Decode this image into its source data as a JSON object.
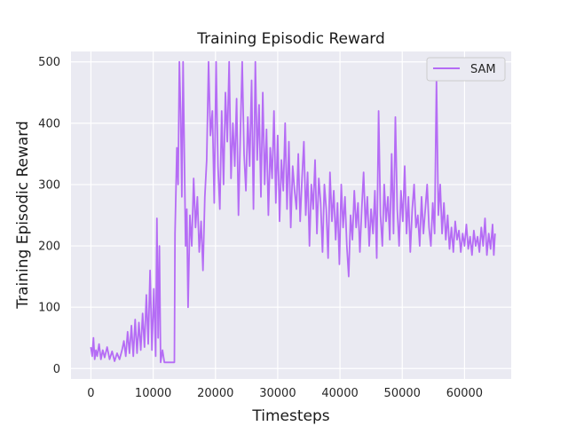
{
  "chart_data": {
    "type": "line",
    "title": "Training Episodic Reward",
    "xlabel": "Timesteps",
    "ylabel": "Training Episodic Reward",
    "xlim": [
      -3200,
      67500
    ],
    "ylim": [
      -17,
      517
    ],
    "x_ticks": [
      0,
      10000,
      20000,
      30000,
      40000,
      50000,
      60000
    ],
    "x_tick_labels": [
      "0",
      "10000",
      "20000",
      "30000",
      "40000",
      "50000",
      "60000"
    ],
    "y_ticks": [
      0,
      100,
      200,
      300,
      400,
      500
    ],
    "y_tick_labels": [
      "0",
      "100",
      "200",
      "300",
      "400",
      "500"
    ],
    "grid": true,
    "legend": {
      "position": "top-right",
      "entries": [
        {
          "name": "SAM",
          "color": "#b56cf5"
        }
      ]
    },
    "series": [
      {
        "name": "SAM",
        "color": "#b56cf5",
        "points": [
          [
            0,
            35
          ],
          [
            200,
            20
          ],
          [
            400,
            50
          ],
          [
            600,
            15
          ],
          [
            800,
            30
          ],
          [
            1000,
            20
          ],
          [
            1300,
            40
          ],
          [
            1600,
            15
          ],
          [
            1900,
            30
          ],
          [
            2200,
            18
          ],
          [
            2600,
            35
          ],
          [
            3000,
            15
          ],
          [
            3400,
            28
          ],
          [
            3800,
            12
          ],
          [
            4200,
            25
          ],
          [
            4600,
            15
          ],
          [
            5000,
            30
          ],
          [
            5300,
            45
          ],
          [
            5600,
            20
          ],
          [
            5900,
            60
          ],
          [
            6200,
            25
          ],
          [
            6500,
            70
          ],
          [
            6800,
            20
          ],
          [
            7100,
            80
          ],
          [
            7400,
            25
          ],
          [
            7700,
            75
          ],
          [
            8000,
            30
          ],
          [
            8300,
            90
          ],
          [
            8600,
            35
          ],
          [
            8900,
            120
          ],
          [
            9200,
            40
          ],
          [
            9500,
            160
          ],
          [
            9800,
            30
          ],
          [
            10100,
            130
          ],
          [
            10400,
            20
          ],
          [
            10600,
            245
          ],
          [
            10800,
            50
          ],
          [
            11000,
            200
          ],
          [
            11200,
            10
          ],
          [
            11500,
            30
          ],
          [
            11800,
            10
          ],
          [
            12200,
            10
          ],
          [
            12600,
            10
          ],
          [
            13000,
            10
          ],
          [
            13400,
            10
          ],
          [
            13500,
            220
          ],
          [
            13800,
            360
          ],
          [
            14000,
            300
          ],
          [
            14200,
            500
          ],
          [
            14400,
            420
          ],
          [
            14600,
            280
          ],
          [
            14800,
            500
          ],
          [
            15000,
            350
          ],
          [
            15200,
            200
          ],
          [
            15400,
            260
          ],
          [
            15600,
            100
          ],
          [
            15900,
            250
          ],
          [
            16200,
            200
          ],
          [
            16500,
            310
          ],
          [
            16800,
            230
          ],
          [
            17100,
            280
          ],
          [
            17400,
            190
          ],
          [
            17700,
            240
          ],
          [
            18000,
            160
          ],
          [
            18300,
            280
          ],
          [
            18600,
            340
          ],
          [
            18900,
            500
          ],
          [
            19200,
            380
          ],
          [
            19500,
            420
          ],
          [
            19800,
            270
          ],
          [
            20100,
            500
          ],
          [
            20400,
            330
          ],
          [
            20700,
            260
          ],
          [
            21000,
            420
          ],
          [
            21300,
            300
          ],
          [
            21600,
            450
          ],
          [
            21900,
            370
          ],
          [
            22200,
            500
          ],
          [
            22500,
            310
          ],
          [
            22800,
            400
          ],
          [
            23100,
            330
          ],
          [
            23400,
            440
          ],
          [
            23700,
            250
          ],
          [
            24000,
            380
          ],
          [
            24300,
            500
          ],
          [
            24600,
            350
          ],
          [
            24900,
            290
          ],
          [
            25200,
            410
          ],
          [
            25500,
            330
          ],
          [
            25800,
            470
          ],
          [
            26100,
            260
          ],
          [
            26400,
            500
          ],
          [
            26700,
            340
          ],
          [
            27000,
            430
          ],
          [
            27300,
            280
          ],
          [
            27600,
            450
          ],
          [
            27900,
            300
          ],
          [
            28200,
            390
          ],
          [
            28500,
            250
          ],
          [
            28800,
            360
          ],
          [
            29100,
            310
          ],
          [
            29400,
            420
          ],
          [
            29700,
            270
          ],
          [
            30000,
            380
          ],
          [
            30300,
            240
          ],
          [
            30600,
            340
          ],
          [
            30900,
            290
          ],
          [
            31200,
            400
          ],
          [
            31500,
            260
          ],
          [
            31800,
            370
          ],
          [
            32100,
            230
          ],
          [
            32400,
            330
          ],
          [
            32700,
            290
          ],
          [
            33000,
            260
          ],
          [
            33300,
            350
          ],
          [
            33600,
            240
          ],
          [
            33900,
            310
          ],
          [
            34200,
            370
          ],
          [
            34500,
            250
          ],
          [
            34800,
            320
          ],
          [
            35100,
            200
          ],
          [
            35400,
            300
          ],
          [
            35700,
            260
          ],
          [
            36000,
            340
          ],
          [
            36300,
            220
          ],
          [
            36600,
            310
          ],
          [
            36900,
            270
          ],
          [
            37200,
            190
          ],
          [
            37500,
            300
          ],
          [
            37800,
            260
          ],
          [
            38100,
            180
          ],
          [
            38400,
            320
          ],
          [
            38700,
            240
          ],
          [
            39000,
            290
          ],
          [
            39300,
            210
          ],
          [
            39600,
            270
          ],
          [
            39900,
            170
          ],
          [
            40200,
            300
          ],
          [
            40500,
            230
          ],
          [
            40800,
            280
          ],
          [
            41100,
            200
          ],
          [
            41400,
            150
          ],
          [
            41700,
            250
          ],
          [
            42000,
            210
          ],
          [
            42300,
            290
          ],
          [
            42600,
            230
          ],
          [
            42900,
            270
          ],
          [
            43200,
            190
          ],
          [
            43500,
            260
          ],
          [
            43800,
            320
          ],
          [
            44100,
            230
          ],
          [
            44400,
            280
          ],
          [
            44700,
            200
          ],
          [
            45000,
            260
          ],
          [
            45300,
            220
          ],
          [
            45600,
            290
          ],
          [
            45900,
            180
          ],
          [
            46200,
            420
          ],
          [
            46500,
            250
          ],
          [
            46800,
            200
          ],
          [
            47100,
            300
          ],
          [
            47400,
            240
          ],
          [
            47700,
            280
          ],
          [
            48000,
            210
          ],
          [
            48300,
            350
          ],
          [
            48600,
            220
          ],
          [
            48900,
            410
          ],
          [
            49200,
            260
          ],
          [
            49500,
            200
          ],
          [
            49800,
            290
          ],
          [
            50100,
            240
          ],
          [
            50400,
            330
          ],
          [
            50700,
            220
          ],
          [
            51000,
            280
          ],
          [
            51300,
            190
          ],
          [
            51600,
            260
          ],
          [
            51900,
            300
          ],
          [
            52200,
            230
          ],
          [
            52500,
            250
          ],
          [
            52800,
            200
          ],
          [
            53100,
            280
          ],
          [
            53400,
            220
          ],
          [
            53700,
            260
          ],
          [
            54000,
            300
          ],
          [
            54300,
            230
          ],
          [
            54600,
            200
          ],
          [
            54900,
            270
          ],
          [
            55200,
            220
          ],
          [
            55500,
            470
          ],
          [
            55800,
            250
          ],
          [
            56100,
            300
          ],
          [
            56400,
            220
          ],
          [
            56700,
            270
          ],
          [
            57000,
            210
          ],
          [
            57300,
            250
          ],
          [
            57600,
            195
          ],
          [
            57900,
            230
          ],
          [
            58200,
            190
          ],
          [
            58500,
            240
          ],
          [
            58800,
            210
          ],
          [
            59100,
            225
          ],
          [
            59400,
            190
          ],
          [
            59700,
            220
          ],
          [
            60000,
            200
          ],
          [
            60300,
            235
          ],
          [
            60600,
            195
          ],
          [
            60900,
            215
          ],
          [
            61200,
            185
          ],
          [
            61500,
            225
          ],
          [
            61800,
            200
          ],
          [
            62100,
            215
          ],
          [
            62400,
            190
          ],
          [
            62700,
            230
          ],
          [
            63000,
            200
          ],
          [
            63300,
            245
          ],
          [
            63600,
            185
          ],
          [
            63900,
            220
          ],
          [
            64200,
            195
          ],
          [
            64500,
            235
          ],
          [
            64700,
            185
          ],
          [
            64900,
            220
          ]
        ]
      }
    ]
  }
}
